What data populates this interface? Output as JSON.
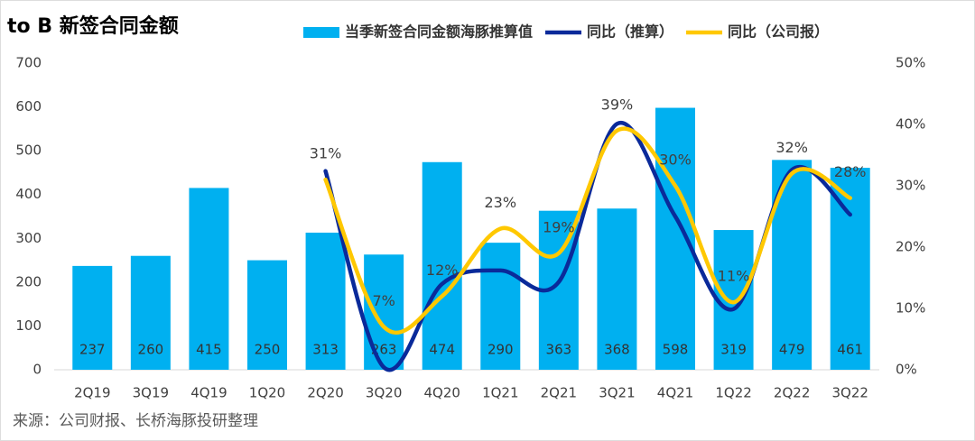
{
  "chart_data": {
    "type": "bar_line",
    "title": "to B 新签合同金额",
    "source": "来源：公司财报、长桥海豚投研整理",
    "categories": [
      "2Q19",
      "3Q19",
      "4Q19",
      "1Q20",
      "2Q20",
      "3Q20",
      "4Q20",
      "1Q21",
      "2Q21",
      "3Q21",
      "4Q21",
      "1Q22",
      "2Q22",
      "3Q22"
    ],
    "series": [
      {
        "name": "当季新签合同金额海豚推算值",
        "type": "bar",
        "color": "#00b0f0",
        "values": [
          237,
          260,
          415,
          250,
          313,
          263,
          474,
          290,
          363,
          368,
          598,
          319,
          479,
          461
        ]
      },
      {
        "name": "同比（推算）",
        "type": "line",
        "axis": "y2",
        "color": "#0a2a9a",
        "values": [
          null,
          null,
          null,
          null,
          32.4,
          0.4,
          14,
          16.2,
          14.3,
          40.1,
          25,
          9.9,
          32.6,
          25.3
        ]
      },
      {
        "name": "同比（公司报）",
        "type": "line",
        "axis": "y2",
        "color": "#ffc800",
        "values": [
          null,
          null,
          null,
          null,
          31,
          7,
          12,
          23,
          19,
          39,
          30,
          11,
          32,
          28
        ],
        "value_labels": [
          null,
          null,
          null,
          null,
          "31%",
          "7%",
          "12%",
          "23%",
          "19%",
          "39%",
          "30%",
          "11%",
          "32%",
          "28%"
        ]
      }
    ],
    "ylim": [
      0,
      700
    ],
    "yticks": [
      0,
      100,
      200,
      300,
      400,
      500,
      600,
      700
    ],
    "y2lim": [
      0,
      50
    ],
    "y2ticks": [
      {
        "value": 0,
        "label": "0%"
      },
      {
        "value": 10,
        "label": "10%"
      },
      {
        "value": 20,
        "label": "20%"
      },
      {
        "value": 30,
        "label": "30%"
      },
      {
        "value": 40,
        "label": "40%"
      },
      {
        "value": 50,
        "label": "50%"
      }
    ]
  }
}
